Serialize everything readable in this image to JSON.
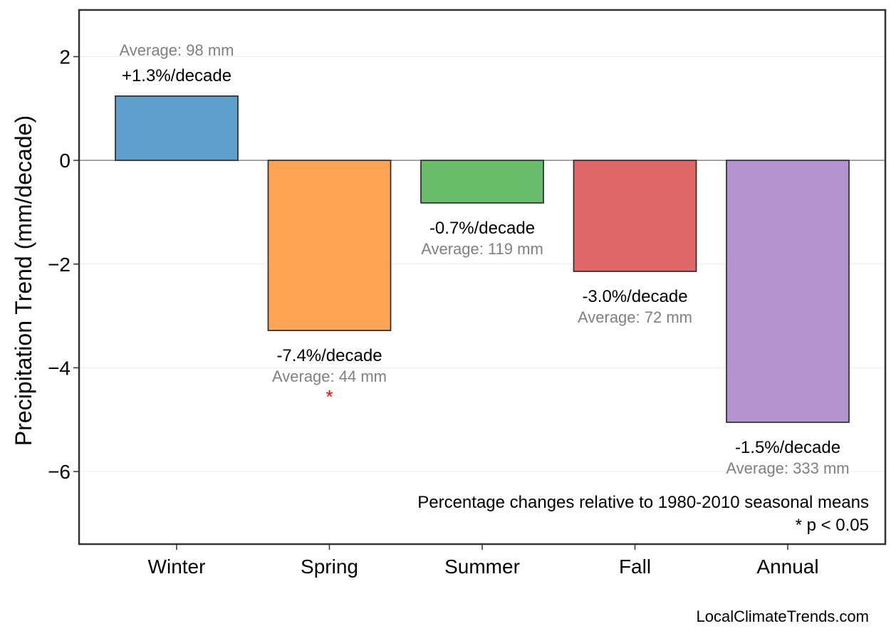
{
  "chart_data": {
    "type": "bar",
    "title": "",
    "xlabel": "",
    "ylabel": "Precipitation Trend (mm/decade)",
    "ylim": [
      -7.4,
      2.9
    ],
    "yticks": [
      -6,
      -4,
      -2,
      0,
      2
    ],
    "ytick_labels": [
      "−6",
      "−4",
      "−2",
      "0",
      "2"
    ],
    "grid": true,
    "categories": [
      "Winter",
      "Spring",
      "Summer",
      "Fall",
      "Annual"
    ],
    "values": [
      1.24,
      -3.28,
      -0.82,
      -2.14,
      -5.05
    ],
    "colors": [
      "#5f9fcb",
      "#ffa455",
      "#6abd6a",
      "#e06868",
      "#b394cf"
    ],
    "pct_labels": [
      "+1.3%/decade",
      "-7.4%/decade",
      "-0.7%/decade",
      "-3.0%/decade",
      "-1.5%/decade"
    ],
    "avg_labels": [
      "Average: 98 mm",
      "Average: 44 mm",
      "Average: 119 mm",
      "Average: 72 mm",
      "Average: 333 mm"
    ],
    "significant": [
      false,
      true,
      false,
      false,
      false
    ],
    "significance_marker": "*",
    "notes": [
      "Percentage changes relative to 1980-2010 seasonal means",
      "* p < 0.05"
    ],
    "credit": "LocalClimateTrends.com"
  }
}
